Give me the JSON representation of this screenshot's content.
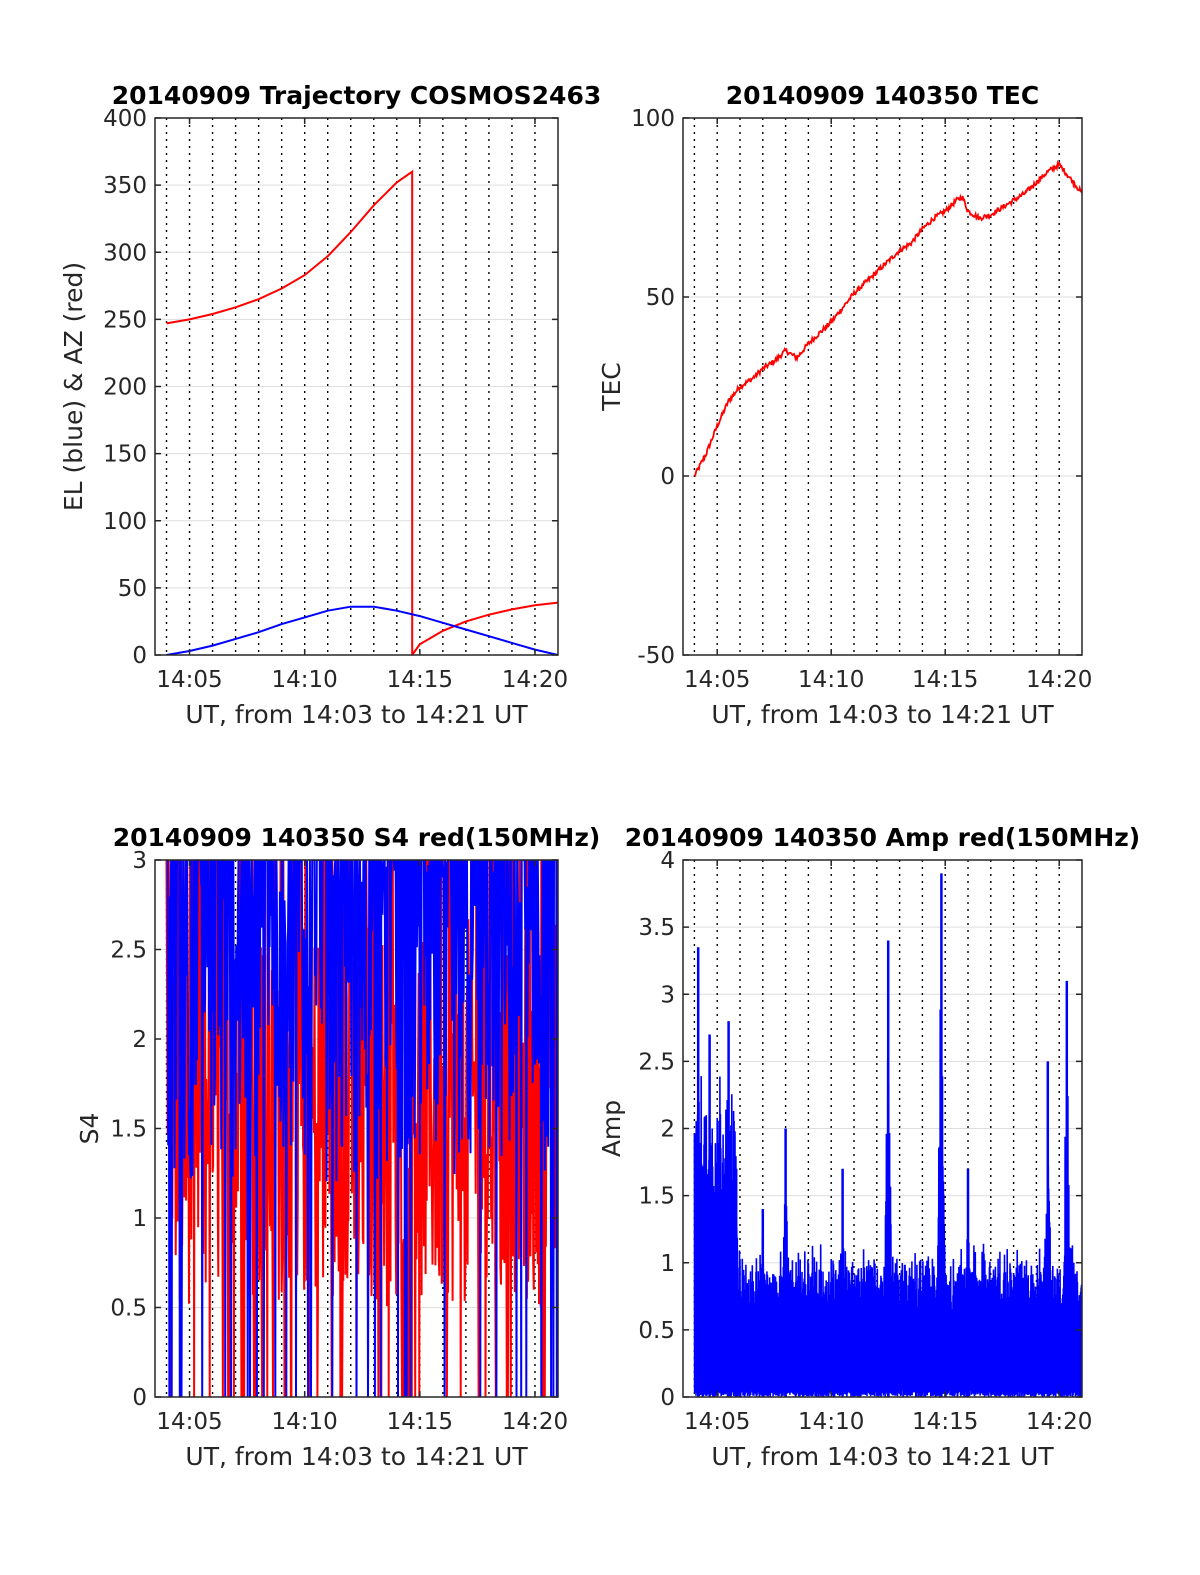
{
  "colors": {
    "red": "#ff0000",
    "blue": "#0000ff",
    "axis": "#262626",
    "grid": "#dddddd",
    "vgrid": "#000000"
  },
  "chart_data": [
    {
      "id": "trajectory",
      "type": "line",
      "title": "20140909 Trajectory COSMOS2463",
      "xlabel": "UT, from 14:03 to 14:21 UT",
      "ylabel": "EL (blue) & AZ (red)",
      "xlim": [
        "14:03:30",
        "14:21:00"
      ],
      "ylim": [
        0,
        400
      ],
      "yticks": [
        0,
        50,
        100,
        150,
        200,
        250,
        300,
        350,
        400
      ],
      "xticks": [
        "14:05",
        "14:10",
        "14:15",
        "14:20"
      ],
      "grid": true,
      "vertical_dotted_lines": "every 1 minute",
      "series": [
        {
          "color": "red",
          "x": [
            "14:04:00",
            "14:05:00",
            "14:06:00",
            "14:07:00",
            "14:08:00",
            "14:09:00",
            "14:10:00",
            "14:11:00",
            "14:12:00",
            "14:13:00",
            "14:14:00",
            "14:14:40",
            "14:14:40",
            "14:15:00",
            "14:16:00",
            "14:17:00",
            "14:18:00",
            "14:19:00",
            "14:20:00",
            "14:21:00"
          ],
          "values": [
            247,
            250,
            254,
            259,
            265,
            273,
            283,
            297,
            315,
            335,
            352,
            360,
            0,
            8,
            18,
            25,
            30,
            34,
            37,
            39
          ]
        },
        {
          "color": "blue",
          "x": [
            "14:04:00",
            "14:05:00",
            "14:06:00",
            "14:07:00",
            "14:08:00",
            "14:09:00",
            "14:10:00",
            "14:11:00",
            "14:12:00",
            "14:13:00",
            "14:14:00",
            "14:15:00",
            "14:16:00",
            "14:17:00",
            "14:18:00",
            "14:19:00",
            "14:20:00",
            "14:21:00"
          ],
          "values": [
            0,
            3,
            7,
            12,
            17,
            23,
            28,
            33,
            36,
            36,
            33,
            29,
            24,
            19,
            14,
            9,
            4,
            0
          ]
        }
      ]
    },
    {
      "id": "tec",
      "type": "line",
      "title": "20140909 140350 TEC",
      "xlabel": "UT, from 14:03 to 14:21 UT",
      "ylabel": "TEC",
      "xlim": [
        "14:03:30",
        "14:21:00"
      ],
      "ylim": [
        -50,
        100
      ],
      "yticks": [
        -50,
        0,
        50,
        100
      ],
      "xticks": [
        "14:05",
        "14:10",
        "14:15",
        "14:20"
      ],
      "grid": true,
      "vertical_dotted_lines": "every 1 minute",
      "series": [
        {
          "color": "red",
          "x": [
            "14:04:00",
            "14:04:30",
            "14:05:00",
            "14:05:30",
            "14:06:00",
            "14:06:30",
            "14:07:00",
            "14:07:30",
            "14:08:00",
            "14:08:30",
            "14:09:00",
            "14:09:30",
            "14:10:00",
            "14:10:30",
            "14:11:00",
            "14:11:30",
            "14:12:00",
            "14:12:30",
            "14:13:00",
            "14:13:30",
            "14:14:00",
            "14:14:30",
            "14:15:00",
            "14:15:30",
            "14:15:45",
            "14:16:00",
            "14:16:30",
            "14:17:00",
            "14:17:30",
            "14:18:00",
            "14:18:30",
            "14:19:00",
            "14:19:30",
            "14:20:00",
            "14:20:30",
            "14:21:00"
          ],
          "values": [
            0,
            6,
            14,
            21,
            25,
            27,
            30,
            32,
            35,
            33,
            37,
            40,
            43,
            47,
            51,
            54,
            57,
            60,
            63,
            65,
            69,
            72,
            74,
            77,
            78,
            74,
            72,
            73,
            75,
            77,
            79,
            82,
            85,
            87,
            83,
            79
          ]
        }
      ]
    },
    {
      "id": "s4",
      "type": "line",
      "title": "20140909 140350 S4 red(150MHz)",
      "xlabel": "UT, from 14:03 to 14:21 UT",
      "ylabel": "S4",
      "xlim": [
        "14:03:30",
        "14:21:00"
      ],
      "ylim": [
        0,
        3
      ],
      "yticks": [
        0,
        0.5,
        1,
        1.5,
        2,
        2.5,
        3
      ],
      "xticks": [
        "14:05",
        "14:10",
        "14:15",
        "14:20"
      ],
      "grid": true,
      "vertical_dotted_lines": "every 1 minute",
      "note_data_range": "dense noisy series between 0 and 3, saturating at top",
      "series": [
        {
          "color": "red",
          "range": [
            0,
            3
          ],
          "typical": [
            0.5,
            2.5
          ]
        },
        {
          "color": "blue",
          "range": [
            0,
            3
          ],
          "typical": [
            1.2,
            3.0
          ]
        }
      ]
    },
    {
      "id": "amp",
      "type": "line",
      "title": "20140909 140350 Amp red(150MHz)",
      "xlabel": "UT, from 14:03 to 14:21 UT",
      "ylabel": "Amp",
      "xlim": [
        "14:03:30",
        "14:21:00"
      ],
      "ylim": [
        0,
        4
      ],
      "yticks": [
        0,
        0.5,
        1,
        1.5,
        2,
        2.5,
        3,
        3.5,
        4
      ],
      "xticks": [
        "14:05",
        "14:10",
        "14:15",
        "14:20"
      ],
      "grid": true,
      "vertical_dotted_lines": "every 1 minute",
      "series": [
        {
          "color": "blue",
          "peaks": [
            {
              "x": "14:04:10",
              "value": 3.35
            },
            {
              "x": "14:04:40",
              "value": 2.7
            },
            {
              "x": "14:05:30",
              "value": 2.8
            },
            {
              "x": "14:05:50",
              "value": 1.7
            },
            {
              "x": "14:07:00",
              "value": 1.4
            },
            {
              "x": "14:08:00",
              "value": 2.0
            },
            {
              "x": "14:10:30",
              "value": 1.7
            },
            {
              "x": "14:12:30",
              "value": 3.4
            },
            {
              "x": "14:14:50",
              "value": 3.9
            },
            {
              "x": "14:16:00",
              "value": 1.7
            },
            {
              "x": "14:19:30",
              "value": 2.5
            },
            {
              "x": "14:20:20",
              "value": 3.1
            }
          ],
          "baseline_top": 1.05
        }
      ]
    }
  ]
}
